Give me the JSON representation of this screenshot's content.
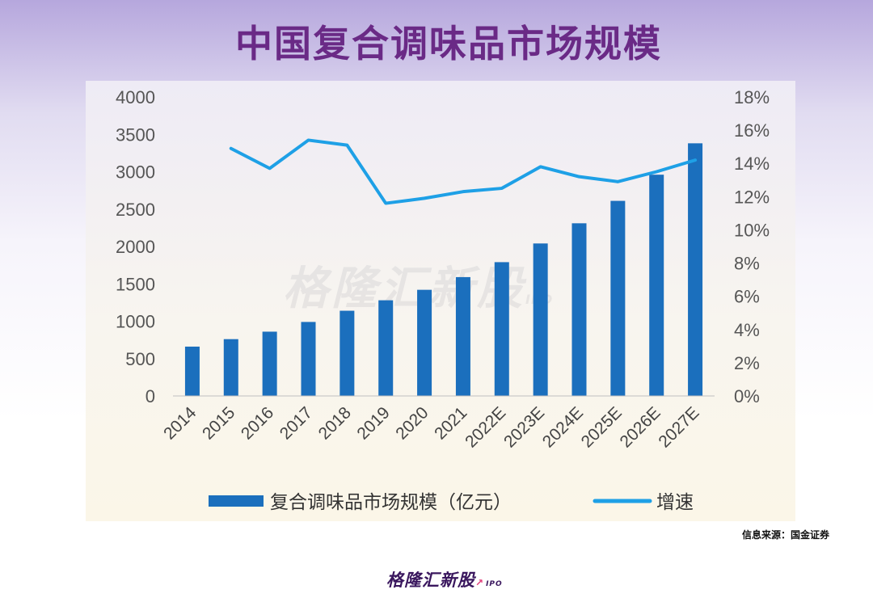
{
  "title": "中国复合调味品市场规模",
  "source": "信息来源：国金证券",
  "brand": {
    "name": "格隆汇新股",
    "suffix": "IPO"
  },
  "watermark": {
    "name": "格隆汇新股",
    "suffix": "IPO"
  },
  "colors": {
    "bar": "#1b6fbd",
    "line": "#1ea0e6",
    "title": "#6a2a86"
  },
  "chart_data": {
    "type": "bar+line",
    "categories": [
      "2014",
      "2015",
      "2016",
      "2017",
      "2018",
      "2019",
      "2020",
      "2021",
      "2022E",
      "2023E",
      "2024E",
      "2025E",
      "2026E",
      "2027E"
    ],
    "series": [
      {
        "name": "复合调味品市场规模（亿元）",
        "type": "bar",
        "axis": "left",
        "values": [
          660,
          760,
          860,
          990,
          1140,
          1280,
          1420,
          1590,
          1790,
          2040,
          2310,
          2610,
          2960,
          3380
        ]
      },
      {
        "name": "增速",
        "type": "line",
        "axis": "right",
        "values": [
          null,
          14.9,
          13.7,
          15.4,
          15.1,
          11.6,
          11.9,
          12.3,
          12.5,
          13.8,
          13.2,
          12.9,
          13.5,
          14.2
        ]
      }
    ],
    "y_left": {
      "min": 0,
      "max": 4000,
      "ticks": [
        "0",
        "500",
        "1000",
        "1500",
        "2000",
        "2500",
        "3000",
        "3500",
        "4000"
      ]
    },
    "y_right": {
      "min": 0,
      "max": 18,
      "ticks": [
        "0%",
        "2%",
        "4%",
        "6%",
        "8%",
        "10%",
        "12%",
        "14%",
        "16%",
        "18%"
      ]
    },
    "legend": {
      "position": "bottom"
    }
  }
}
